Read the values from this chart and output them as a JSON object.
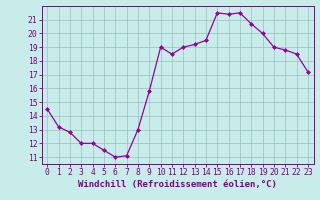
{
  "x": [
    0,
    1,
    2,
    3,
    4,
    5,
    6,
    7,
    8,
    9,
    10,
    11,
    12,
    13,
    14,
    15,
    16,
    17,
    18,
    19,
    20,
    21,
    22,
    23
  ],
  "y": [
    14.5,
    13.2,
    12.8,
    12.0,
    12.0,
    11.5,
    11.0,
    11.1,
    13.0,
    15.8,
    19.0,
    18.5,
    19.0,
    19.2,
    19.5,
    21.5,
    21.4,
    21.5,
    20.7,
    20.0,
    19.0,
    18.8,
    18.5,
    17.2
  ],
  "line_color": "#990099",
  "marker": "D",
  "marker_size": 2.0,
  "bg_color": "#c8ecea",
  "grid_color": "#9ec8c6",
  "xlabel": "Windchill (Refroidissement éolien,°C)",
  "xlim": [
    -0.5,
    23.5
  ],
  "ylim": [
    10.5,
    22.0
  ],
  "yticks": [
    11,
    12,
    13,
    14,
    15,
    16,
    17,
    18,
    19,
    20,
    21
  ],
  "xticks": [
    0,
    1,
    2,
    3,
    4,
    5,
    6,
    7,
    8,
    9,
    10,
    11,
    12,
    13,
    14,
    15,
    16,
    17,
    18,
    19,
    20,
    21,
    22,
    23
  ],
  "tick_color": "#800080",
  "tick_label_color": "#800080",
  "axis_color": "#800080",
  "xlabel_color": "#800080",
  "xlabel_fontsize": 6.5,
  "tick_fontsize": 5.8,
  "lw": 0.9
}
